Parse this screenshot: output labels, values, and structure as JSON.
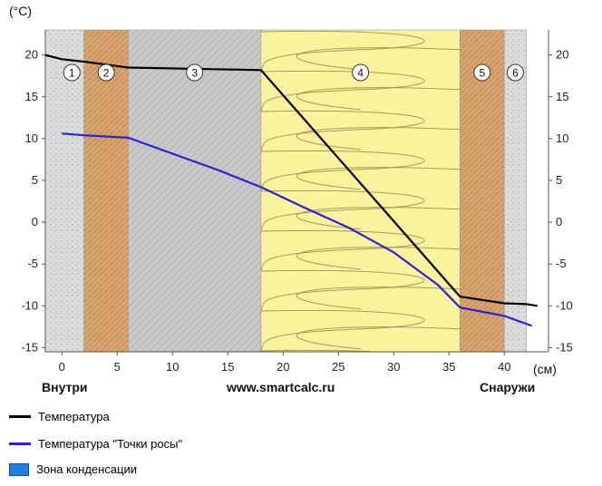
{
  "chart_data": {
    "type": "line",
    "unit_label": "(°C)",
    "x_unit_label": "(см)",
    "xlim": [
      -1.5,
      44
    ],
    "ylim": [
      -15.5,
      23
    ],
    "x_ticks": [
      0,
      5,
      10,
      15,
      20,
      25,
      30,
      35,
      40
    ],
    "y_ticks": [
      -15,
      -10,
      -5,
      0,
      5,
      10,
      15,
      20
    ],
    "x_tick_labels": [
      "0",
      "5",
      "10",
      "15",
      "20",
      "25",
      "30",
      "35",
      "40"
    ],
    "y_tick_labels": [
      "-15",
      "-10",
      "-5",
      "0",
      "5",
      "10",
      "15",
      "20"
    ],
    "y_tick_labels_right": [
      "15",
      "10",
      "5",
      "0",
      "-5",
      "-10",
      "-15"
    ],
    "y_ticks_right": [
      15,
      10,
      5,
      0,
      -5,
      -10,
      -15
    ],
    "y_right_top_label": "20",
    "left_caption": "Внутри",
    "center_caption": "www.smartcalc.ru",
    "right_caption": "Снаружи",
    "layers": [
      {
        "num": "1",
        "x0": -1.5,
        "x1": 2,
        "material": "plaster",
        "color": "#d9d9d9"
      },
      {
        "num": "2",
        "x0": 2,
        "x1": 6,
        "material": "brick",
        "color": "#d9a873"
      },
      {
        "num": "3",
        "x0": 6,
        "x1": 18,
        "material": "concrete",
        "color": "#c8c8c8"
      },
      {
        "num": "4",
        "x0": 18,
        "x1": 36,
        "material": "insulation",
        "color": "#fbf29e"
      },
      {
        "num": "5",
        "x0": 36,
        "x1": 40,
        "material": "brick",
        "color": "#d9a873"
      },
      {
        "num": "6",
        "x0": 40,
        "x1": 42,
        "material": "plaster",
        "color": "#d9d9d9"
      }
    ],
    "series": [
      {
        "name": "Температура",
        "color": "#000000",
        "x": [
          -1.5,
          0,
          2,
          6,
          18,
          36,
          40,
          42,
          43
        ],
        "y": [
          20,
          19.5,
          19.2,
          18.5,
          18.2,
          -8.9,
          -9.7,
          -9.8,
          -10
        ]
      },
      {
        "name": "Температура \"Точки росы\"",
        "color": "#2a21d6",
        "x": [
          0,
          2,
          6,
          10,
          14,
          18,
          22,
          26,
          30,
          34,
          36,
          40,
          42.5
        ],
        "y": [
          10.6,
          10.4,
          10.1,
          8.2,
          6.3,
          4.2,
          1.7,
          -0.7,
          -3.6,
          -7.5,
          -10.2,
          -11.2,
          -12.4
        ]
      }
    ],
    "legend": [
      {
        "label": "Температура",
        "color": "#000000",
        "kind": "line"
      },
      {
        "label": "Температура \"Точки росы\"",
        "color": "#2a21d6",
        "kind": "line"
      },
      {
        "label": "Зона конденсации",
        "color": "#1e7fe0",
        "kind": "box"
      }
    ],
    "grid": false
  }
}
